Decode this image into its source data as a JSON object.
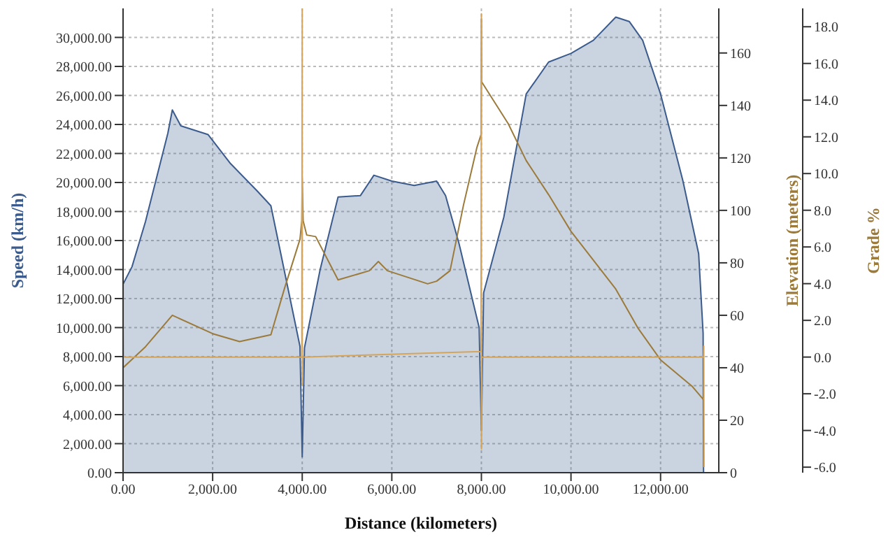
{
  "chart_data": {
    "type": "area",
    "xlabel": "Distance (kilometers)",
    "ylabel": "Speed (km/h)",
    "y2label": "Elevation (meters)",
    "y3label": "Grade %",
    "grid": true,
    "legend": false,
    "xlim": [
      0,
      13300
    ],
    "xticks": [
      {
        "value": 0,
        "label": "0.00"
      },
      {
        "value": 2000,
        "label": "2,000.00"
      },
      {
        "value": 4000,
        "label": "4,000.00"
      },
      {
        "value": 6000,
        "label": "6,000.00"
      },
      {
        "value": 8000,
        "label": "8,000.00"
      },
      {
        "value": 10000,
        "label": "10,000.00"
      },
      {
        "value": 12000,
        "label": "12,000.00"
      }
    ],
    "ylim": [
      0,
      32000
    ],
    "yticks": [
      {
        "value": 0,
        "label": "0.00"
      },
      {
        "value": 2000,
        "label": "2,000.00"
      },
      {
        "value": 4000,
        "label": "4,000.00"
      },
      {
        "value": 6000,
        "label": "6,000.00"
      },
      {
        "value": 8000,
        "label": "8,000.00"
      },
      {
        "value": 10000,
        "label": "10,000.00"
      },
      {
        "value": 12000,
        "label": "12,000.00"
      },
      {
        "value": 14000,
        "label": "14,000.00"
      },
      {
        "value": 16000,
        "label": "16,000.00"
      },
      {
        "value": 18000,
        "label": "18,000.00"
      },
      {
        "value": 20000,
        "label": "20,000.00"
      },
      {
        "value": 22000,
        "label": "22,000.00"
      },
      {
        "value": 24000,
        "label": "24,000.00"
      },
      {
        "value": 26000,
        "label": "26,000.00"
      },
      {
        "value": 28000,
        "label": "28,000.00"
      },
      {
        "value": 30000,
        "label": "30,000.00"
      }
    ],
    "y2lim": [
      0,
      177
    ],
    "y2ticks": [
      0,
      20,
      40,
      60,
      80,
      100,
      120,
      140,
      160
    ],
    "y3lim": [
      -6.3,
      19
    ],
    "y3ticks": [
      {
        "value": -6,
        "label": "-6.0"
      },
      {
        "value": -4,
        "label": "-4.0"
      },
      {
        "value": -2,
        "label": "-2.0"
      },
      {
        "value": 0,
        "label": "0.0"
      },
      {
        "value": 2,
        "label": "2.0"
      },
      {
        "value": 4,
        "label": "4.0"
      },
      {
        "value": 6,
        "label": "6.0"
      },
      {
        "value": 8,
        "label": "8.0"
      },
      {
        "value": 10,
        "label": "10.0"
      },
      {
        "value": 12,
        "label": "12.0"
      },
      {
        "value": 14,
        "label": "14.0"
      },
      {
        "value": 16,
        "label": "16.0"
      },
      {
        "value": 18,
        "label": "18.0"
      }
    ],
    "series": [
      {
        "color": "#3b5b8c",
        "x": [
          0,
          1,
          200,
          500,
          1000,
          1100,
          1290,
          1900,
          2400,
          3000,
          3300,
          3950,
          4000,
          4050,
          4400,
          4800,
          5300,
          5600,
          6000,
          6500,
          7000,
          7200,
          7500,
          7950,
          8000,
          8050,
          8500,
          9000,
          9500,
          10000,
          10500,
          11000,
          11300,
          11600,
          12000,
          12500,
          12850,
          12950,
          12960
        ],
        "values": [
          0,
          13000,
          14200,
          17300,
          23400,
          25000,
          23900,
          23300,
          21300,
          19400,
          18400,
          8700,
          1100,
          8600,
          14000,
          19000,
          19100,
          20500,
          20100,
          19800,
          20100,
          19100,
          15800,
          10000,
          2900,
          12400,
          17600,
          26100,
          28300,
          28900,
          29800,
          31400,
          31100,
          29800,
          26100,
          20100,
          15100,
          9600,
          0
        ]
      },
      {
        "type": "line",
        "axis": "y2",
        "color": "#9b7a3a",
        "x": [
          0,
          500,
          1100,
          2000,
          2600,
          3300,
          3600,
          3950,
          3990,
          4000,
          4020,
          4100,
          4300,
          4800,
          5500,
          5700,
          5900,
          6800,
          7000,
          7300,
          7600,
          7900,
          7995,
          8000,
          8005,
          8600,
          9000,
          9500,
          10000,
          11000,
          11500,
          12000,
          12700,
          12950
        ],
        "values": [
          40,
          48,
          60,
          53,
          50,
          52.6,
          70,
          89,
          96,
          112,
          96,
          90.6,
          90,
          73.5,
          77,
          80.5,
          77,
          72,
          73,
          77,
          102,
          124,
          129,
          173,
          149,
          133,
          119,
          106,
          92,
          70,
          55,
          43,
          33,
          28
        ]
      },
      {
        "type": "line",
        "axis": "y3",
        "color": "#d4a55a",
        "x": [
          0,
          10,
          3990,
          4000,
          4001,
          4010,
          7990,
          8000,
          8001,
          8010,
          12960,
          12965,
          12970
        ],
        "values": [
          1.6,
          0,
          0,
          19,
          -1.5,
          0,
          0.3,
          18.7,
          -5,
          0,
          0,
          0.6,
          -6
        ]
      }
    ]
  }
}
